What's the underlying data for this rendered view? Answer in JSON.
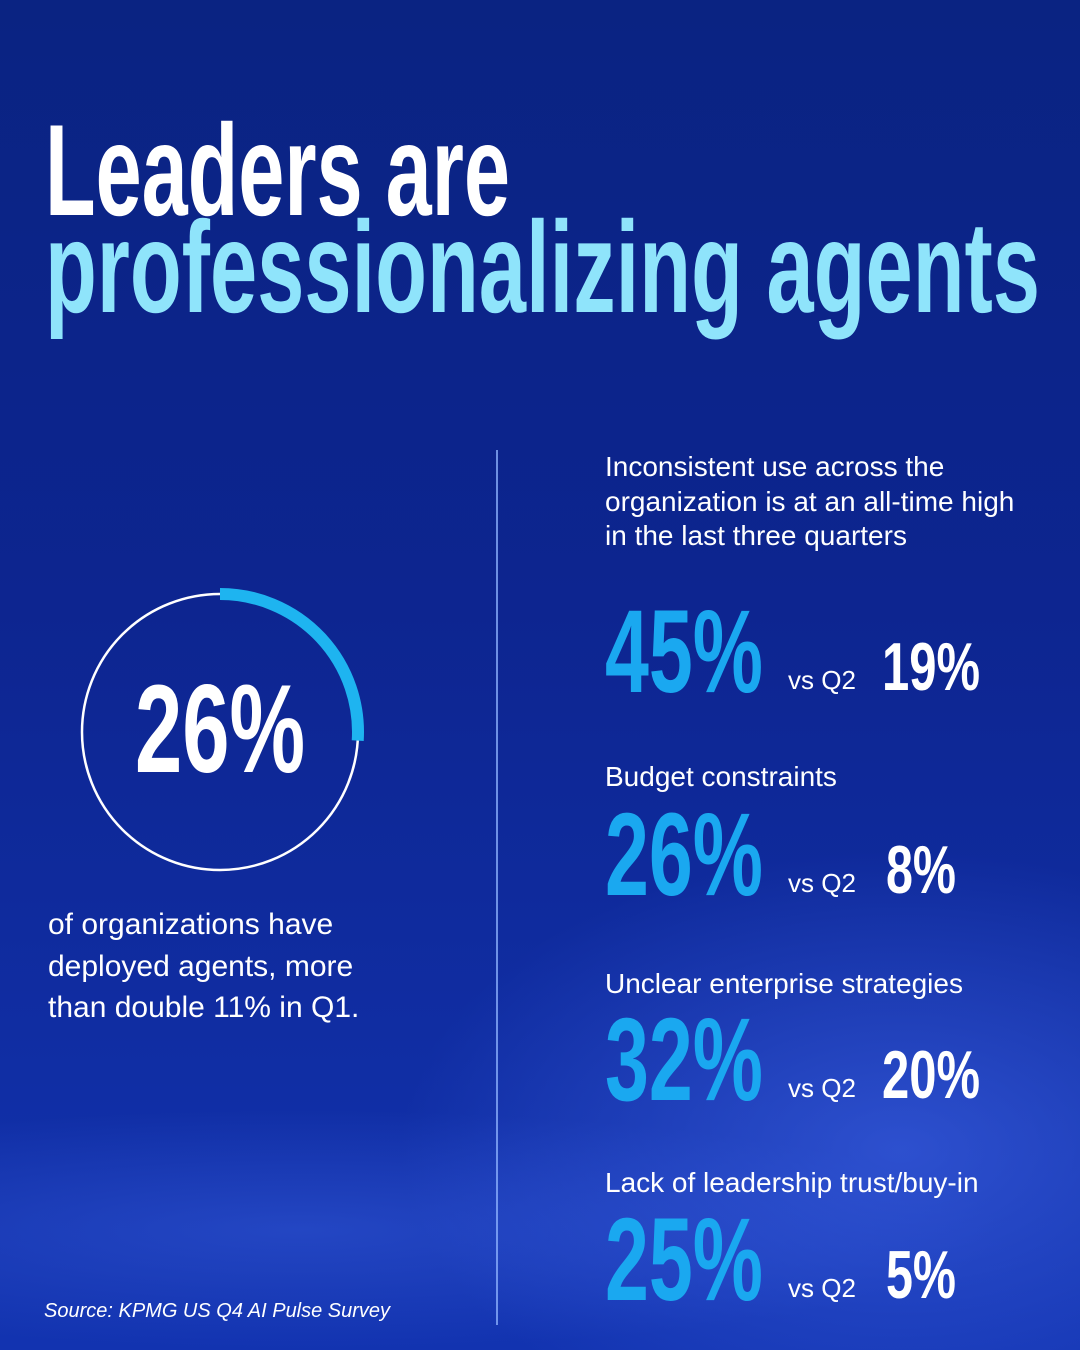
{
  "title": {
    "line1": "Leaders are",
    "line2": "professionalizing agents"
  },
  "gauge": {
    "value": 26,
    "label": "26%",
    "caption": "of organizations have deployed agents, more than double 11% in Q1."
  },
  "stats": [
    {
      "label": "Inconsistent use across the organization is at an all-time high in the last three quarters",
      "current": "45%",
      "compare_label": "vs Q2",
      "previous": "19%"
    },
    {
      "label": "Budget constraints",
      "current": "26%",
      "compare_label": "vs Q2",
      "previous": "8%"
    },
    {
      "label": "Unclear enterprise strategies",
      "current": "32%",
      "compare_label": "vs Q2",
      "previous": "20%"
    },
    {
      "label": "Lack of leadership trust/buy-in",
      "current": "25%",
      "compare_label": "vs Q2",
      "previous": "5%"
    }
  ],
  "source": "Source: KPMG US Q4 AI Pulse Survey"
}
